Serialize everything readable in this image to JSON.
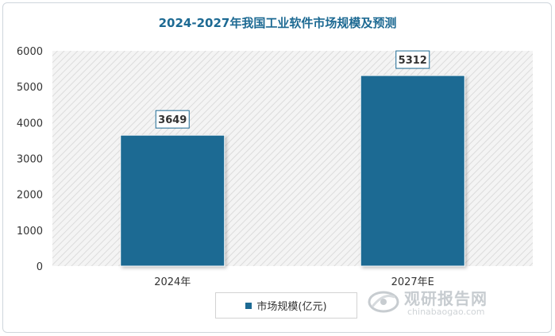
{
  "chart_data": {
    "type": "bar",
    "title": "2024-2027年我国工业软件市场规模及预测",
    "categories": [
      "2024年",
      "2027年E"
    ],
    "series": [
      {
        "name": "市场规模(亿元)",
        "values": [
          3649,
          5312
        ],
        "color": "#1d6a93"
      }
    ],
    "data_labels": [
      "3649",
      "5312"
    ],
    "yticks": [
      "0",
      "1000",
      "2000",
      "3000",
      "4000",
      "5000",
      "6000"
    ],
    "ylim": [
      0,
      6000
    ],
    "grid": false,
    "legend_position": "bottom"
  },
  "watermark": {
    "text_cn": "观研报告网",
    "text_en": "chinabaogao.com"
  }
}
